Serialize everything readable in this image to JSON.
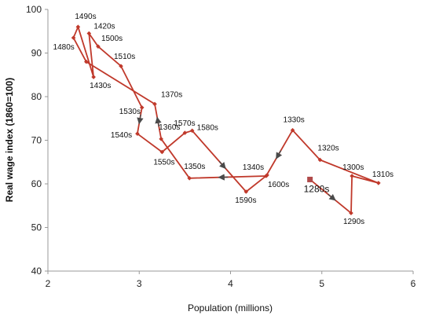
{
  "chart_data": {
    "type": "line",
    "title": "",
    "xlabel": "Population (millions)",
    "ylabel": "Real wage index (1860=100)",
    "xlim": [
      2,
      6
    ],
    "ylim": [
      40,
      100
    ],
    "xticks": [
      "2",
      "3",
      "4",
      "5",
      "6"
    ],
    "yticks": [
      "40",
      "50",
      "60",
      "70",
      "80",
      "90",
      "100"
    ],
    "grid": false,
    "legend": "none",
    "line_color": "#c0392b",
    "arrow_color": "#4a4a4a",
    "start_marker_color": "#b04a4a",
    "series": [
      {
        "points": [
          {
            "x": 4.87,
            "y": 61.0,
            "label": "1280s"
          },
          {
            "x": 5.32,
            "y": 53.3,
            "label": "1290s"
          },
          {
            "x": 5.33,
            "y": 61.8,
            "label": "1300s"
          },
          {
            "x": 5.62,
            "y": 60.2,
            "label": "1310s"
          },
          {
            "x": 4.98,
            "y": 65.5,
            "label": "1320s"
          },
          {
            "x": 4.68,
            "y": 72.3,
            "label": "1330s"
          },
          {
            "x": 4.39,
            "y": 61.8,
            "label": "1340s"
          },
          {
            "x": 3.55,
            "y": 61.3,
            "label": "1350s"
          },
          {
            "x": 3.24,
            "y": 70.3,
            "label": "1360s"
          },
          {
            "x": 3.17,
            "y": 78.3,
            "label": "1370s"
          },
          {
            "x": 2.42,
            "y": 88.0,
            "label": ""
          },
          {
            "x": 2.28,
            "y": 93.5,
            "label": "1480s"
          },
          {
            "x": 2.33,
            "y": 96.0,
            "label": "1490s"
          },
          {
            "x": 2.5,
            "y": 84.5,
            "label": "1430s"
          },
          {
            "x": 2.45,
            "y": 94.5,
            "label": "1420s"
          },
          {
            "x": 2.55,
            "y": 91.5,
            "label": "1500s"
          },
          {
            "x": 2.8,
            "y": 87.0,
            "label": "1510s"
          },
          {
            "x": 3.03,
            "y": 77.5,
            "label": "1530s"
          },
          {
            "x": 2.98,
            "y": 71.5,
            "label": "1540s"
          },
          {
            "x": 3.25,
            "y": 67.3,
            "label": "1550s"
          },
          {
            "x": 3.5,
            "y": 71.7,
            "label": "1570s"
          },
          {
            "x": 3.58,
            "y": 72.2,
            "label": "1580s"
          },
          {
            "x": 4.17,
            "y": 58.2,
            "label": "1590s"
          },
          {
            "x": 4.4,
            "y": 62.0,
            "label": "1600s"
          }
        ]
      }
    ],
    "start_marker": {
      "x": 4.87,
      "y": 61.0,
      "label": "1280s"
    }
  }
}
